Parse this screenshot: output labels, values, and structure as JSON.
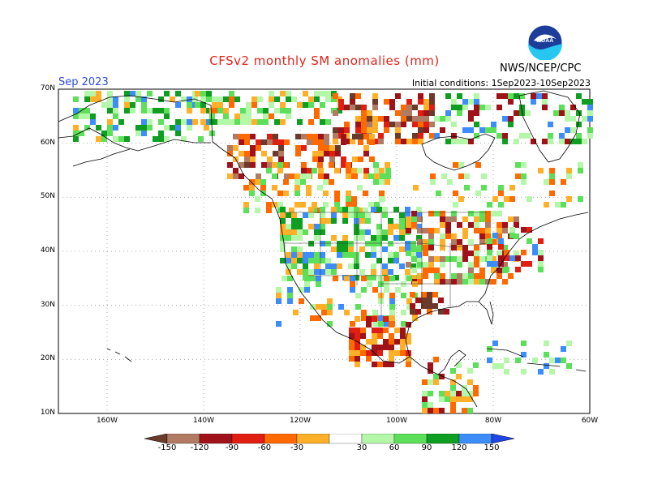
{
  "title": "CFSv2 monthly SM anomalies (mm)",
  "month_label": "Sep 2023",
  "initial_conditions": "Initial conditions: 1Sep2023-10Sep2023",
  "agency": "NWS/NCEP/CPC",
  "logo_text": "NOAA",
  "lat_ticks": [
    "70N",
    "60N",
    "50N",
    "40N",
    "30N",
    "20N",
    "10N"
  ],
  "lon_ticks": [
    "160W",
    "140W",
    "120W",
    "100W",
    "80W",
    "60W"
  ],
  "legend": {
    "labels": [
      "-150",
      "-120",
      "-90",
      "-60",
      "-30",
      "30",
      "60",
      "90",
      "120",
      "150"
    ],
    "colors": [
      "#6b3a2a",
      "#b07a63",
      "#a0121a",
      "#e01e12",
      "#ff6a00",
      "#ffb028",
      "#ffffff",
      "#b4f7a8",
      "#5ce05a",
      "#0f9e22",
      "#3c8dfa",
      "#1f46e6"
    ]
  },
  "colors": {
    "title": "#e0231a",
    "month": "#2a4bd7",
    "grid": "#999999"
  }
}
